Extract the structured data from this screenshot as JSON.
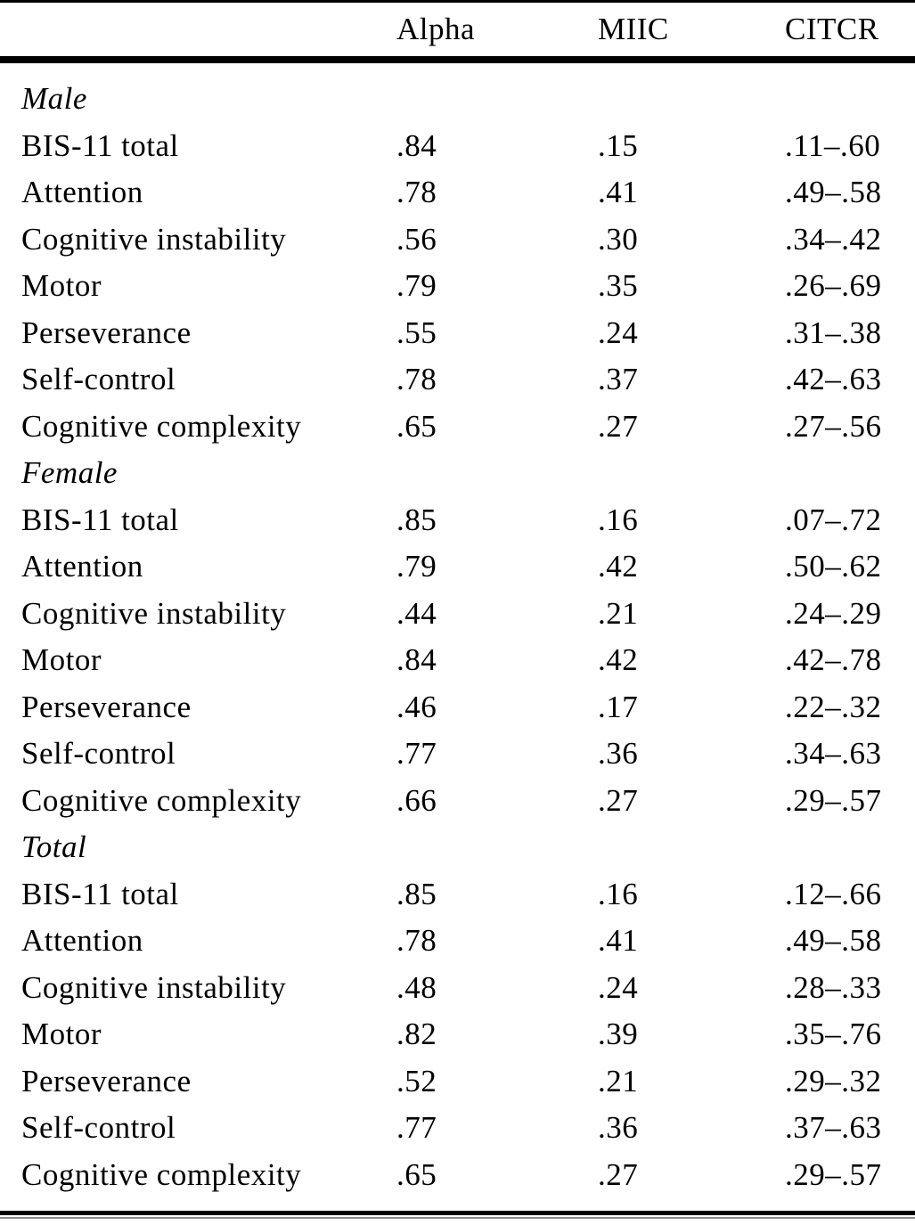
{
  "table": {
    "header": {
      "label_col": "",
      "alpha": "Alpha",
      "miic": "MIIC",
      "citcr": "CITCR"
    },
    "sections": [
      {
        "label": "Male",
        "rows": [
          {
            "label": "BIS-11 total",
            "alpha": ".84",
            "miic": ".15",
            "citcr": ".11–.60"
          },
          {
            "label": "Attention",
            "alpha": ".78",
            "miic": ".41",
            "citcr": ".49–.58"
          },
          {
            "label": "Cognitive instability",
            "alpha": ".56",
            "miic": ".30",
            "citcr": ".34–.42"
          },
          {
            "label": "Motor",
            "alpha": ".79",
            "miic": ".35",
            "citcr": ".26–.69"
          },
          {
            "label": "Perseverance",
            "alpha": ".55",
            "miic": ".24",
            "citcr": ".31–.38"
          },
          {
            "label": "Self-control",
            "alpha": ".78",
            "miic": ".37",
            "citcr": ".42–.63"
          },
          {
            "label": "Cognitive complexity",
            "alpha": ".65",
            "miic": ".27",
            "citcr": ".27–.56"
          }
        ]
      },
      {
        "label": "Female",
        "rows": [
          {
            "label": "BIS-11 total",
            "alpha": ".85",
            "miic": ".16",
            "citcr": ".07–.72"
          },
          {
            "label": "Attention",
            "alpha": ".79",
            "miic": ".42",
            "citcr": ".50–.62"
          },
          {
            "label": "Cognitive instability",
            "alpha": ".44",
            "miic": ".21",
            "citcr": ".24–.29"
          },
          {
            "label": "Motor",
            "alpha": ".84",
            "miic": ".42",
            "citcr": ".42–.78"
          },
          {
            "label": "Perseverance",
            "alpha": ".46",
            "miic": ".17",
            "citcr": ".22–.32"
          },
          {
            "label": "Self-control",
            "alpha": ".77",
            "miic": ".36",
            "citcr": ".34–.63"
          },
          {
            "label": "Cognitive complexity",
            "alpha": ".66",
            "miic": ".27",
            "citcr": ".29–.57"
          }
        ]
      },
      {
        "label": "Total",
        "rows": [
          {
            "label": "BIS-11 total",
            "alpha": ".85",
            "miic": ".16",
            "citcr": ".12–.66"
          },
          {
            "label": "Attention",
            "alpha": ".78",
            "miic": ".41",
            "citcr": ".49–.58"
          },
          {
            "label": "Cognitive instability",
            "alpha": ".48",
            "miic": ".24",
            "citcr": ".28–.33"
          },
          {
            "label": "Motor",
            "alpha": ".82",
            "miic": ".39",
            "citcr": ".35–.76"
          },
          {
            "label": "Perseverance",
            "alpha": ".52",
            "miic": ".21",
            "citcr": ".29–.32"
          },
          {
            "label": "Self-control",
            "alpha": ".77",
            "miic": ".36",
            "citcr": ".37–.63"
          },
          {
            "label": "Cognitive complexity",
            "alpha": ".65",
            "miic": ".27",
            "citcr": ".29–.57"
          }
        ]
      }
    ]
  }
}
